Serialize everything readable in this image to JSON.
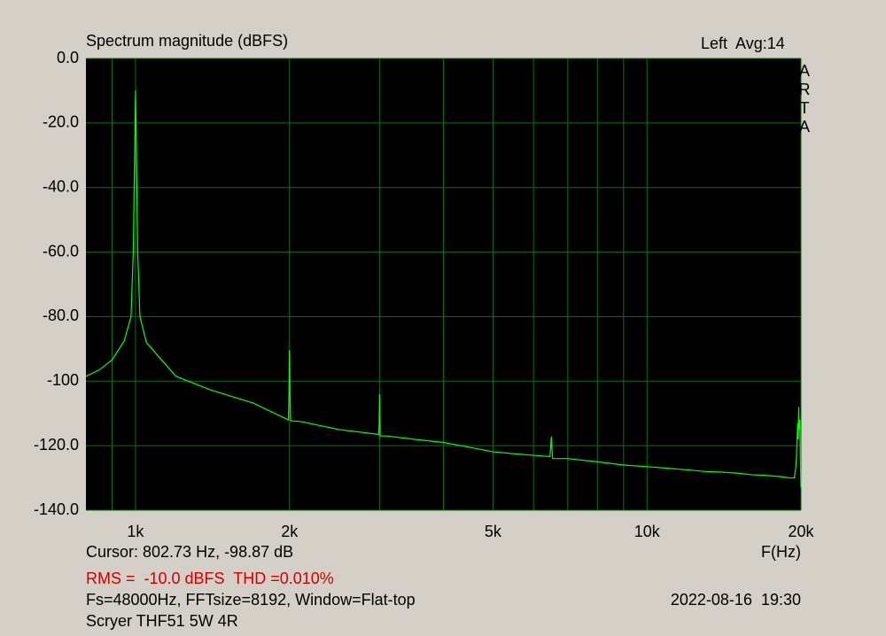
{
  "chart_data": {
    "type": "line",
    "title": "Spectrum magnitude (dBFS)",
    "channel_label": "Left  Avg:14",
    "brand": "ARTA",
    "x_label": "F(Hz)",
    "cursor_text": "Cursor: 802.73 Hz, -98.87 dB",
    "measurement_text": "RMS =  -10.0 dBFS  THD =0.010%",
    "settings_text": "Fs=48000Hz, FFTsize=8192, Window=Flat-top",
    "timestamp": "2022-08-16  19:30",
    "device_text": "Scryer THF51 5W 4R",
    "log_x": true,
    "grid": true,
    "grid_color": "#0b6f10",
    "plot_background": "#000000",
    "xlim": [
      800,
      20000
    ],
    "xticks": [
      {
        "value": 1000,
        "label": "1k"
      },
      {
        "value": 2000,
        "label": "2k"
      },
      {
        "value": 5000,
        "label": "5k"
      },
      {
        "value": 10000,
        "label": "10k"
      },
      {
        "value": 20000,
        "label": "20k"
      }
    ],
    "x_minor_grid": [
      900,
      3000,
      4000,
      6000,
      7000,
      8000,
      9000
    ],
    "ylim": [
      -140,
      0
    ],
    "yticks": [
      {
        "value": 0,
        "label": "0.0"
      },
      {
        "value": -20,
        "label": "-20.0"
      },
      {
        "value": -40,
        "label": "-40.0"
      },
      {
        "value": -60,
        "label": "-60.0"
      },
      {
        "value": -80,
        "label": "-80.0"
      },
      -100,
      {
        "value": -120,
        "label": "-120.0"
      },
      {
        "value": -140,
        "label": "-140.0"
      }
    ],
    "x": [
      800,
      850,
      900,
      950,
      980,
      990,
      1000,
      1010,
      1020,
      1050,
      1100,
      1200,
      1400,
      1700,
      1990,
      1995,
      2000,
      2005,
      2010,
      2100,
      2500,
      2990,
      2995,
      3000,
      3005,
      3010,
      3100,
      3500,
      4000,
      4500,
      5000,
      5500,
      6000,
      6460,
      6480,
      6500,
      6520,
      6540,
      7000,
      8000,
      9000,
      10000,
      11000,
      12000,
      13000,
      14000,
      15000,
      16000,
      17000,
      18000,
      19000,
      19400,
      19500,
      19600,
      19700,
      19750,
      19800,
      19850,
      19900,
      19950,
      20000
    ],
    "series": [
      {
        "color": "#00ff00",
        "values": [
          -98.5,
          -96.5,
          -93.4,
          -87.6,
          -80,
          -60,
          -9.9,
          -60,
          -80,
          -88,
          -91.7,
          -98.5,
          -102.7,
          -106.8,
          -112,
          -105,
          -90.3,
          -105,
          -112.3,
          -112.5,
          -115,
          -116.5,
          -112,
          -104,
          -112,
          -117,
          -117,
          -118,
          -119,
          -120.5,
          -121.9,
          -122.5,
          -123,
          -123.4,
          -121,
          -117.2,
          -121,
          -124,
          -124,
          -125,
          -126,
          -126.5,
          -127,
          -127.5,
          -128,
          -128.2,
          -128.5,
          -129,
          -129.2,
          -129.5,
          -130,
          -130,
          -128,
          -124,
          -113,
          -118,
          -108,
          -115,
          -112,
          -125,
          -133
        ]
      }
    ]
  }
}
